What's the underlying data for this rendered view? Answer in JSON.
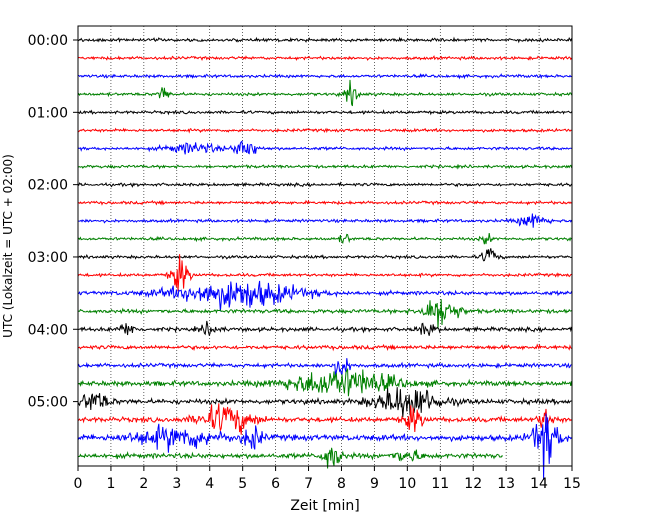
{
  "chart_data": {
    "type": "line",
    "title": "",
    "xlabel": "Zeit  [min]",
    "ylabel": "UTC (Lokalzeit = UTC + 02:00)",
    "xlim": [
      0,
      15
    ],
    "x_ticks": [
      0,
      1,
      2,
      3,
      4,
      5,
      6,
      7,
      8,
      9,
      10,
      11,
      12,
      13,
      14,
      15
    ],
    "y_ticks": [
      "00:00",
      "01:00",
      "02:00",
      "03:00",
      "04:00",
      "05:00"
    ],
    "row_interval_min": 15,
    "row_count": 24,
    "grid": "vertical-dotted",
    "colors": {
      "cycle": [
        "#000000",
        "#ff0000",
        "#0000ff",
        "#008000"
      ]
    },
    "rows": [
      {
        "time": "00:00",
        "color": "#000000",
        "end_min": 15,
        "noise": 3,
        "events": []
      },
      {
        "time": "00:15",
        "color": "#ff0000",
        "end_min": 15,
        "noise": 3,
        "events": []
      },
      {
        "time": "00:30",
        "color": "#0000ff",
        "end_min": 15,
        "noise": 3,
        "events": []
      },
      {
        "time": "00:45",
        "color": "#008000",
        "end_min": 15,
        "noise": 3,
        "events": [
          {
            "t": 2.6,
            "amp": 8,
            "dur": 0.3
          },
          {
            "t": 8.3,
            "amp": 10,
            "dur": 0.4
          }
        ]
      },
      {
        "time": "01:00",
        "color": "#000000",
        "end_min": 15,
        "noise": 3,
        "events": []
      },
      {
        "time": "01:15",
        "color": "#ff0000",
        "end_min": 15,
        "noise": 3,
        "events": []
      },
      {
        "time": "01:30",
        "color": "#0000ff",
        "end_min": 15,
        "noise": 3,
        "events": [
          {
            "t": 3.5,
            "amp": 5,
            "dur": 1.5
          },
          {
            "t": 5.1,
            "amp": 11,
            "dur": 0.6
          }
        ]
      },
      {
        "time": "01:45",
        "color": "#008000",
        "end_min": 15,
        "noise": 3,
        "events": []
      },
      {
        "time": "02:00",
        "color": "#000000",
        "end_min": 15,
        "noise": 3,
        "events": []
      },
      {
        "time": "02:15",
        "color": "#ff0000",
        "end_min": 15,
        "noise": 3,
        "events": []
      },
      {
        "time": "02:30",
        "color": "#0000ff",
        "end_min": 15,
        "noise": 3,
        "events": [
          {
            "t": 13.8,
            "amp": 7,
            "dur": 0.8
          }
        ]
      },
      {
        "time": "02:45",
        "color": "#008000",
        "end_min": 15,
        "noise": 3,
        "events": [
          {
            "t": 8.1,
            "amp": 5,
            "dur": 0.3
          },
          {
            "t": 12.4,
            "amp": 5,
            "dur": 0.3
          }
        ]
      },
      {
        "time": "03:00",
        "color": "#000000",
        "end_min": 15,
        "noise": 3,
        "events": [
          {
            "t": 12.5,
            "amp": 10,
            "dur": 0.4
          }
        ]
      },
      {
        "time": "03:15",
        "color": "#ff0000",
        "end_min": 15,
        "noise": 3,
        "events": [
          {
            "t": 3.1,
            "amp": 17,
            "dur": 0.5
          }
        ]
      },
      {
        "time": "03:30",
        "color": "#0000ff",
        "end_min": 15,
        "noise": 4,
        "events": [
          {
            "t": 4.8,
            "amp": 14,
            "dur": 3.5
          }
        ]
      },
      {
        "time": "03:45",
        "color": "#008000",
        "end_min": 15,
        "noise": 4,
        "events": [
          {
            "t": 11.0,
            "amp": 16,
            "dur": 1.0
          }
        ]
      },
      {
        "time": "04:00",
        "color": "#000000",
        "end_min": 15,
        "noise": 4,
        "events": [
          {
            "t": 1.5,
            "amp": 6,
            "dur": 0.5
          },
          {
            "t": 4.0,
            "amp": 6,
            "dur": 0.5
          },
          {
            "t": 10.6,
            "amp": 6,
            "dur": 0.5
          }
        ]
      },
      {
        "time": "04:15",
        "color": "#ff0000",
        "end_min": 15,
        "noise": 4,
        "events": []
      },
      {
        "time": "04:30",
        "color": "#0000ff",
        "end_min": 15,
        "noise": 4,
        "events": [
          {
            "t": 8.0,
            "amp": 10,
            "dur": 0.5
          }
        ]
      },
      {
        "time": "04:45",
        "color": "#008000",
        "end_min": 15,
        "noise": 5,
        "events": [
          {
            "t": 8.0,
            "amp": 14,
            "dur": 3.0
          }
        ]
      },
      {
        "time": "05:00",
        "color": "#000000",
        "end_min": 15,
        "noise": 5,
        "events": [
          {
            "t": 0.5,
            "amp": 10,
            "dur": 0.8
          },
          {
            "t": 10.0,
            "amp": 16,
            "dur": 1.8
          }
        ]
      },
      {
        "time": "05:15",
        "color": "#ff0000",
        "end_min": 15,
        "noise": 5,
        "events": [
          {
            "t": 4.5,
            "amp": 14,
            "dur": 1.5
          },
          {
            "t": 10.2,
            "amp": 12,
            "dur": 0.5
          },
          {
            "t": 14.2,
            "amp": 11,
            "dur": 0.4
          }
        ]
      },
      {
        "time": "05:30",
        "color": "#0000ff",
        "end_min": 15,
        "noise": 6,
        "events": [
          {
            "t": 3.0,
            "amp": 10,
            "dur": 2.5
          },
          {
            "t": 5.3,
            "amp": 12,
            "dur": 0.5
          },
          {
            "t": 14.2,
            "amp": 28,
            "dur": 0.7
          }
        ]
      },
      {
        "time": "05:45",
        "color": "#008000",
        "end_min": 12.9,
        "noise": 5,
        "events": [
          {
            "t": 7.7,
            "amp": 14,
            "dur": 0.5
          },
          {
            "t": 10.0,
            "amp": 6,
            "dur": 0.8
          }
        ]
      }
    ]
  }
}
